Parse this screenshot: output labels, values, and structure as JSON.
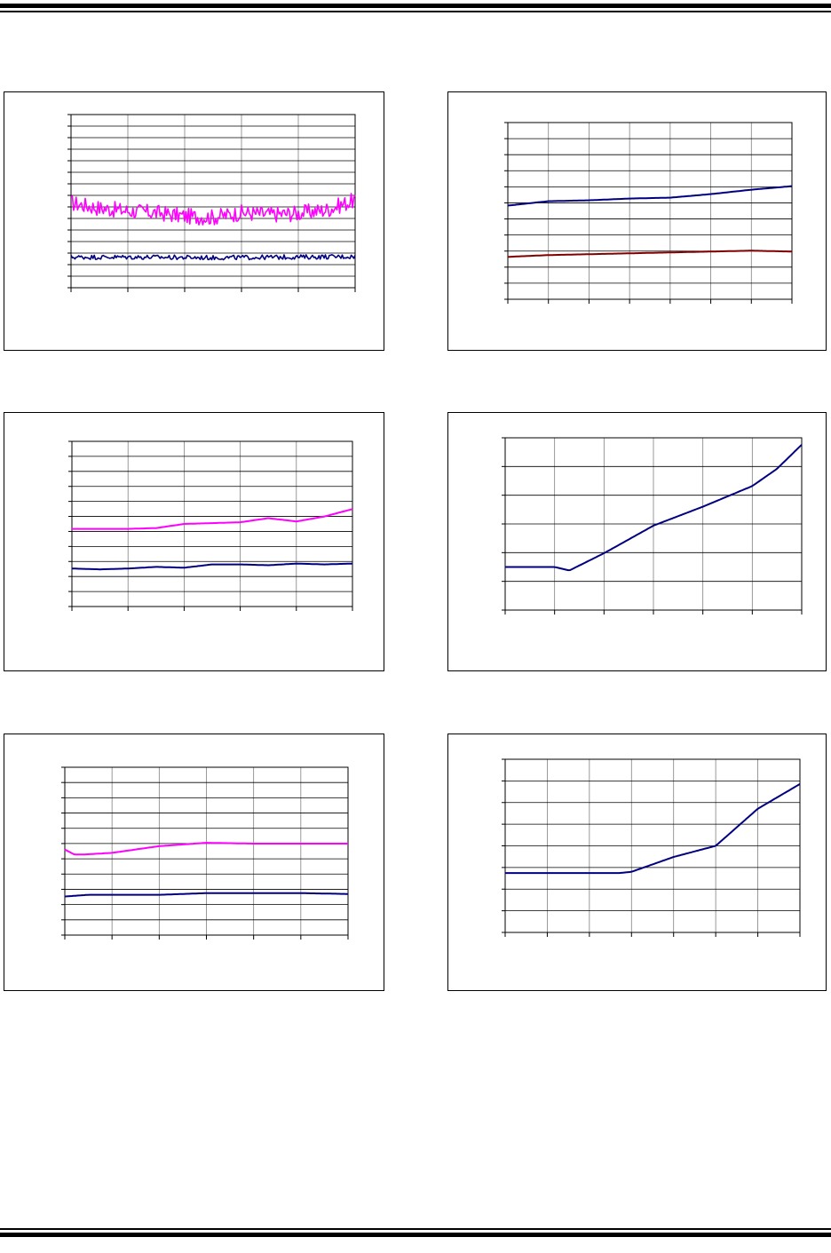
{
  "rule_color": "#000000",
  "chart_data": [
    {
      "id": "c1",
      "type": "line",
      "xlim": [
        0,
        100
      ],
      "ylim": [
        0,
        3
      ],
      "x_ticks": 6,
      "x_grid": 5,
      "y_minor": 15,
      "y_major": 3,
      "series": [
        {
          "color": "#ff00ff",
          "noise": 0.14,
          "x": [
            0,
            10,
            20,
            30,
            40,
            50,
            60,
            70,
            80,
            90,
            100
          ],
          "values": [
            1.47,
            1.38,
            1.33,
            1.3,
            1.24,
            1.22,
            1.3,
            1.27,
            1.29,
            1.35,
            1.52
          ]
        },
        {
          "color": "#000080",
          "noise": 0.04,
          "x": [
            0,
            25,
            50,
            75,
            100
          ],
          "values": [
            0.53,
            0.53,
            0.52,
            0.53,
            0.54
          ]
        }
      ]
    },
    {
      "id": "c2",
      "type": "line",
      "xlim": [
        0,
        7
      ],
      "ylim": [
        0,
        10
      ],
      "x_ticks": 8,
      "x_grid": 7,
      "y_minor": 11,
      "y_major": 5,
      "series": [
        {
          "color": "#000080",
          "x": [
            0,
            1,
            2,
            3,
            4,
            5,
            6,
            7
          ],
          "values": [
            5.3,
            5.55,
            5.6,
            5.7,
            5.75,
            5.95,
            6.2,
            6.4
          ]
        },
        {
          "color": "#800000",
          "x": [
            0,
            1,
            2,
            3,
            4,
            5,
            6,
            7
          ],
          "values": [
            2.4,
            2.5,
            2.55,
            2.6,
            2.65,
            2.7,
            2.75,
            2.7
          ]
        }
      ]
    },
    {
      "id": "c3",
      "type": "line",
      "xlim": [
        0,
        5
      ],
      "ylim": [
        0,
        10
      ],
      "x_ticks": 6,
      "x_grid": 5,
      "y_minor": 11,
      "y_major": 5,
      "series": [
        {
          "color": "#ff00ff",
          "x": [
            0,
            1,
            1.5,
            2,
            2.5,
            3,
            3.5,
            4,
            4.5,
            5
          ],
          "values": [
            4.7,
            4.7,
            4.75,
            5.0,
            5.05,
            5.1,
            5.35,
            5.15,
            5.45,
            5.9
          ]
        },
        {
          "color": "#000080",
          "x": [
            0,
            0.5,
            1,
            1.5,
            2,
            2.5,
            3,
            3.5,
            4,
            4.5,
            5
          ],
          "values": [
            2.3,
            2.25,
            2.3,
            2.4,
            2.35,
            2.55,
            2.55,
            2.5,
            2.6,
            2.55,
            2.6
          ]
        }
      ]
    },
    {
      "id": "c4",
      "type": "line",
      "xlim": [
        0,
        6
      ],
      "ylim": [
        0,
        5
      ],
      "x_ticks": 7,
      "x_grid": 6,
      "y_minor": 6,
      "y_major": 3,
      "series": [
        {
          "color": "#000080",
          "x": [
            0,
            0.5,
            1,
            1.3,
            2,
            3,
            4,
            5,
            5.5,
            6
          ],
          "values": [
            1.25,
            1.25,
            1.25,
            1.15,
            1.65,
            2.45,
            3.0,
            3.6,
            4.1,
            4.8
          ]
        }
      ]
    },
    {
      "id": "c5",
      "type": "line",
      "xlim": [
        0,
        6
      ],
      "ylim": [
        0,
        10
      ],
      "x_ticks": 7,
      "x_grid": 6,
      "y_minor": 11,
      "y_major": 5,
      "series": [
        {
          "color": "#ff00ff",
          "x": [
            0,
            0.2,
            0.4,
            1,
            2,
            3,
            4,
            5,
            6
          ],
          "values": [
            5.1,
            4.8,
            4.8,
            4.9,
            5.3,
            5.5,
            5.45,
            5.45,
            5.45
          ]
        },
        {
          "color": "#000080",
          "x": [
            0,
            0.5,
            1,
            2,
            3,
            4,
            5,
            6
          ],
          "values": [
            2.3,
            2.4,
            2.4,
            2.4,
            2.5,
            2.5,
            2.5,
            2.45
          ]
        }
      ]
    },
    {
      "id": "c6",
      "type": "line",
      "xlim": [
        0,
        7
      ],
      "ylim": [
        0,
        7
      ],
      "x_ticks": 8,
      "x_grid": 7,
      "y_minor": 8,
      "y_major": 4,
      "series": [
        {
          "color": "#000080",
          "x": [
            0,
            1,
            2,
            2.7,
            3,
            4,
            5,
            6,
            7
          ],
          "values": [
            2.4,
            2.4,
            2.4,
            2.4,
            2.45,
            3.05,
            3.5,
            5.0,
            6.0
          ]
        }
      ]
    }
  ]
}
